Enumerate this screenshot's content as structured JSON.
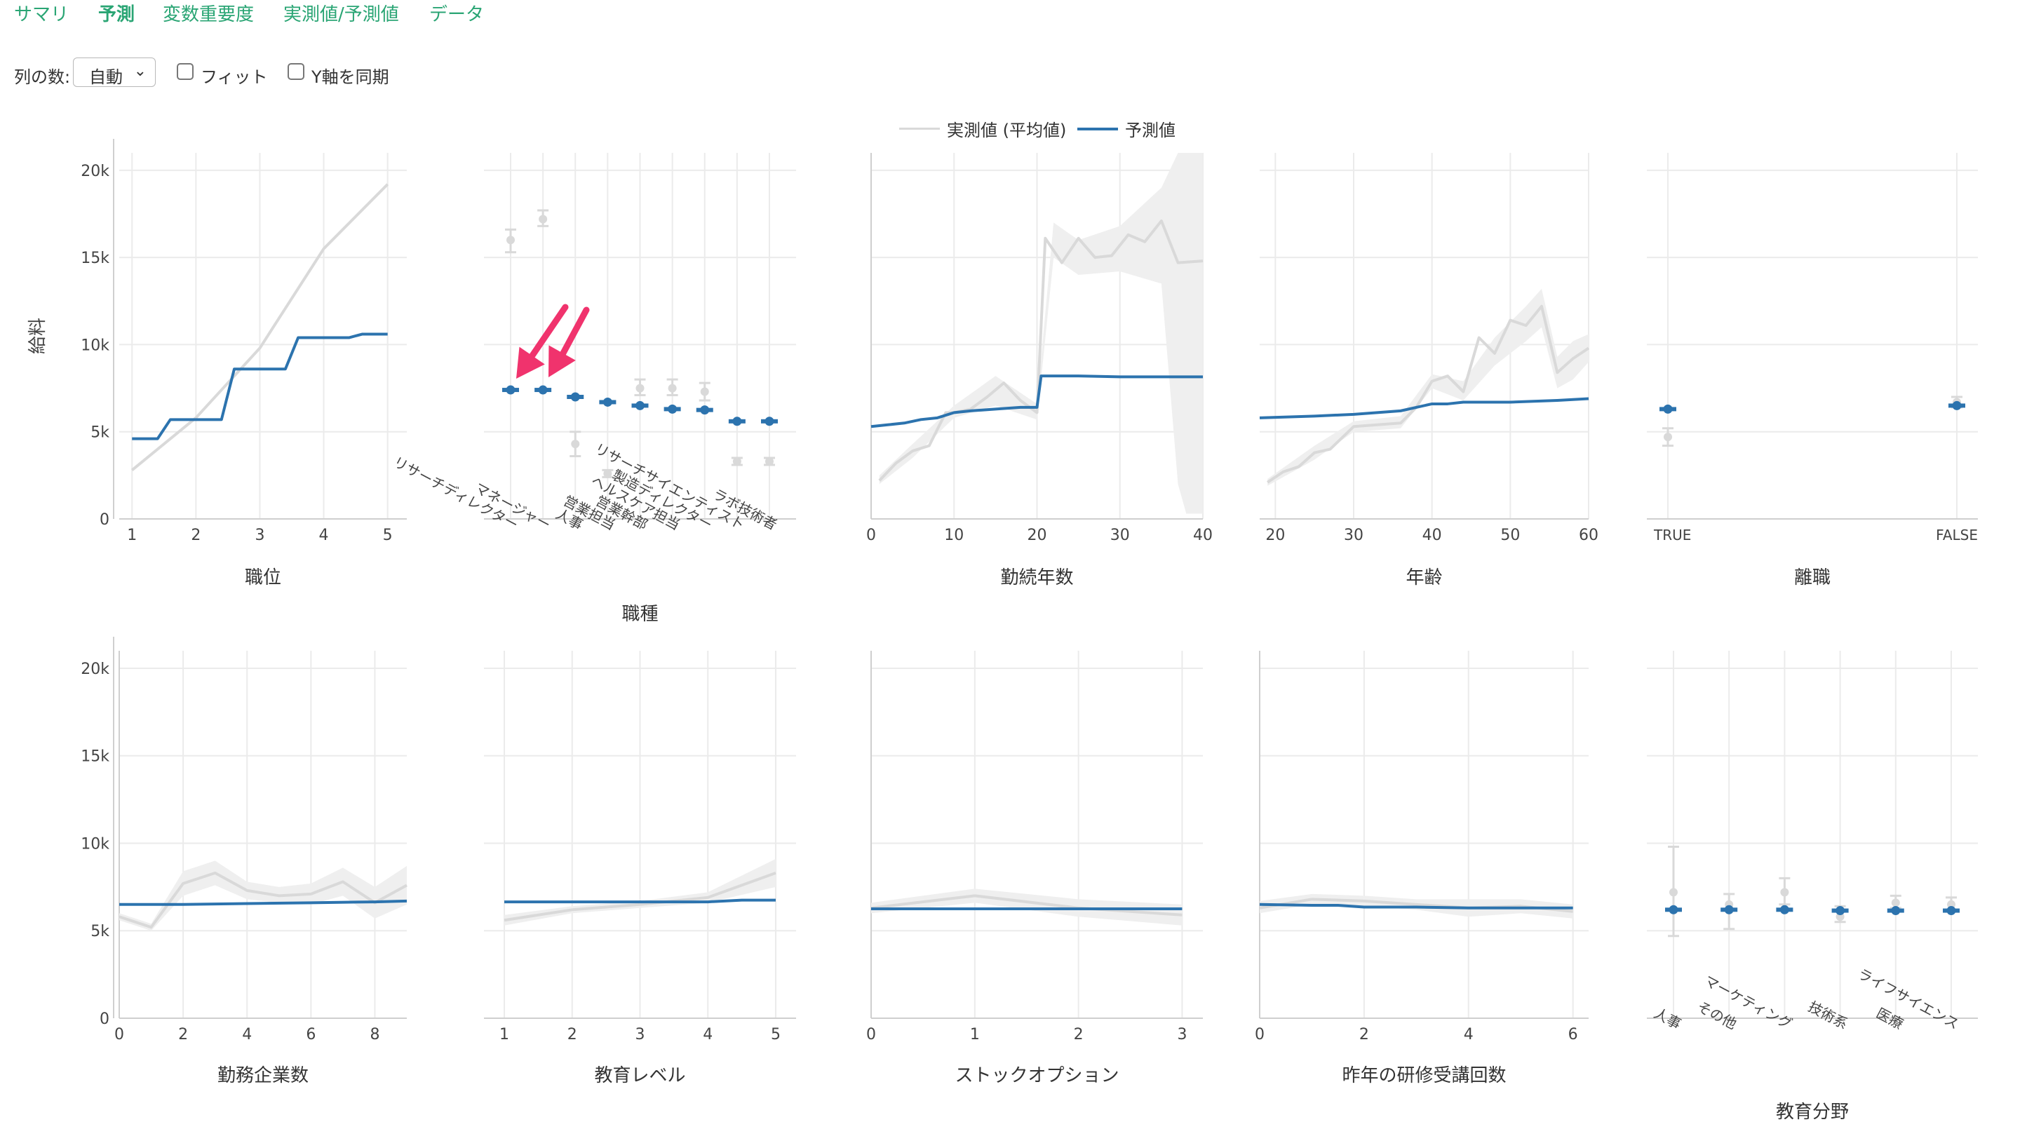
{
  "tabs": [
    {
      "label": "サマリ",
      "active": false
    },
    {
      "label": "予測",
      "active": true
    },
    {
      "label": "変数重要度",
      "active": false
    },
    {
      "label": "実測値/予測値",
      "active": false
    },
    {
      "label": "データ",
      "active": false
    }
  ],
  "controls": {
    "columns_label": "列の数:",
    "columns_value": "自動",
    "fit_label": "フィット",
    "fit_checked": false,
    "sync_y_label": "Y軸を同期",
    "sync_y_checked": true
  },
  "legend": {
    "actual_label": "実測値 (平均値)",
    "predicted_label": "予測値"
  },
  "colors": {
    "actual": "#d9d9d9",
    "band": "#efefef",
    "predicted": "#2c73ae",
    "grid": "#ebebeb",
    "arrow": "#f0336d",
    "tab": "#2aa574"
  },
  "chart_data": [
    {
      "type": "line",
      "xlabel": "職位",
      "ylabel": "給料",
      "ylim": [
        0,
        21000
      ],
      "xlim": [
        0.8,
        5.3
      ],
      "xticks": [
        1,
        2,
        3,
        4,
        5
      ],
      "yticks": [
        0,
        5000,
        10000,
        15000,
        20000
      ],
      "ytick_labels": [
        "0",
        "5k",
        "10k",
        "15k",
        "20k"
      ],
      "actual": {
        "x": [
          1,
          2,
          3,
          4,
          5
        ],
        "y": [
          2800,
          5800,
          9800,
          15500,
          19200
        ]
      },
      "predicted": {
        "x": [
          1,
          1.4,
          1.6,
          2.4,
          2.6,
          3.4,
          3.6,
          4.4,
          4.6,
          5
        ],
        "y": [
          4600,
          4600,
          5700,
          5700,
          8600,
          8600,
          10400,
          10400,
          10600,
          10600
        ]
      }
    },
    {
      "type": "scatter",
      "xlabel": "職種",
      "ylim": [
        0,
        21000
      ],
      "categories": [
        "リサーチディレクター",
        "マネージャー",
        "人事",
        "営業担当",
        "営業幹部",
        "ヘルスケア担当",
        "製造ディレクター",
        "リサーチサイエンティスト",
        "ラボ技術者"
      ],
      "predicted": [
        7400,
        7400,
        7000,
        6700,
        6500,
        6300,
        6250,
        5600,
        5600
      ],
      "actual": [
        16000,
        17200,
        4300,
        2600,
        7500,
        7500,
        7300,
        3300,
        3300
      ],
      "actual_lo": [
        15300,
        16800,
        3600,
        2400,
        7100,
        7100,
        6800,
        3100,
        3100
      ],
      "actual_hi": [
        16600,
        17700,
        5000,
        2800,
        8000,
        8000,
        7800,
        3500,
        3500
      ],
      "annotations": [
        "arrow→リサーチディレクター",
        "arrow→マネージャー"
      ]
    },
    {
      "type": "line",
      "xlabel": "勤続年数",
      "ylim": [
        0,
        21000
      ],
      "xlim": [
        0,
        40
      ],
      "xticks": [
        0,
        10,
        20,
        30,
        40
      ],
      "actual": {
        "x": [
          1,
          3,
          5,
          7,
          9,
          10,
          12,
          14,
          16,
          18,
          20,
          21,
          23,
          25,
          27,
          29,
          31,
          33,
          35,
          37,
          40
        ],
        "y": [
          2200,
          3200,
          3900,
          4200,
          6100,
          6100,
          6300,
          7000,
          7800,
          6800,
          6100,
          16100,
          14700,
          16100,
          15000,
          15100,
          16300,
          15900,
          17100,
          14700,
          14800
        ]
      },
      "band": {
        "x": [
          1,
          5,
          10,
          15,
          20,
          22,
          25,
          30,
          35,
          37,
          38,
          40
        ],
        "lo": [
          2000,
          3500,
          5800,
          6500,
          5700,
          15000,
          14000,
          14200,
          13500,
          2000,
          300,
          300
        ],
        "hi": [
          2500,
          4300,
          6500,
          8200,
          6600,
          17000,
          16000,
          16800,
          19000,
          21000,
          21000,
          21000
        ]
      },
      "predicted": {
        "x": [
          0,
          2,
          4,
          6,
          8,
          10,
          12,
          15,
          18,
          20,
          20.5,
          22,
          25,
          30,
          35,
          40
        ],
        "y": [
          5300,
          5400,
          5500,
          5700,
          5800,
          6100,
          6200,
          6300,
          6400,
          6400,
          8200,
          8200,
          8200,
          8150,
          8150,
          8150
        ]
      }
    },
    {
      "type": "line",
      "xlabel": "年齢",
      "ylim": [
        0,
        21000
      ],
      "xlim": [
        18,
        60
      ],
      "xticks": [
        20,
        30,
        40,
        50,
        60
      ],
      "actual": {
        "x": [
          19,
          21,
          23,
          25,
          27,
          30,
          33,
          36,
          38,
          40,
          42,
          44,
          46,
          48,
          50,
          52,
          54,
          56,
          58,
          60
        ],
        "y": [
          2100,
          2700,
          3000,
          3800,
          4000,
          5300,
          5400,
          5500,
          6400,
          7900,
          8200,
          7300,
          10400,
          9500,
          11400,
          11100,
          12200,
          8400,
          9200,
          9800
        ]
      },
      "band": {
        "x": [
          19,
          25,
          30,
          36,
          40,
          44,
          48,
          52,
          54,
          56,
          58,
          60
        ],
        "lo": [
          1900,
          3400,
          5000,
          5200,
          7500,
          6800,
          8800,
          10200,
          11000,
          7500,
          8000,
          9000
        ],
        "hi": [
          2300,
          4200,
          5600,
          5900,
          8300,
          7900,
          10400,
          12200,
          13200,
          9300,
          10200,
          10600
        ]
      },
      "predicted": {
        "x": [
          18,
          25,
          30,
          36,
          40,
          42,
          44,
          50,
          56,
          60
        ],
        "y": [
          5800,
          5900,
          6000,
          6200,
          6600,
          6600,
          6700,
          6700,
          6800,
          6900
        ]
      }
    },
    {
      "type": "scatter",
      "xlabel": "離職",
      "ylim": [
        0,
        21000
      ],
      "categories": [
        "TRUE",
        "FALSE"
      ],
      "predicted": [
        6300,
        6500
      ],
      "actual": [
        4700,
        6700
      ],
      "actual_lo": [
        4200,
        6400
      ],
      "actual_hi": [
        5200,
        7000
      ]
    },
    {
      "type": "line",
      "xlabel": "勤務企業数",
      "ylim": [
        0,
        21000
      ],
      "xlim": [
        0,
        9
      ],
      "xticks": [
        0,
        2,
        4,
        6,
        8
      ],
      "yticks": [
        0,
        5000,
        10000,
        15000,
        20000
      ],
      "ytick_labels": [
        "0",
        "5k",
        "10k",
        "15k",
        "20k"
      ],
      "actual": {
        "x": [
          0,
          1,
          2,
          3,
          4,
          5,
          6,
          7,
          8,
          9
        ],
        "y": [
          5800,
          5200,
          7700,
          8300,
          7300,
          7000,
          7100,
          7800,
          6600,
          7600
        ]
      },
      "band": {
        "x": [
          0,
          1,
          2,
          3,
          4,
          5,
          6,
          7,
          8,
          9
        ],
        "lo": [
          5600,
          5000,
          7000,
          7600,
          6800,
          6600,
          6500,
          7000,
          5700,
          6500
        ],
        "hi": [
          6000,
          5400,
          8400,
          9000,
          7800,
          7500,
          7700,
          8600,
          7500,
          8700
        ]
      },
      "predicted": {
        "x": [
          0,
          2,
          4,
          6,
          8,
          9
        ],
        "y": [
          6500,
          6500,
          6550,
          6600,
          6650,
          6700
        ]
      }
    },
    {
      "type": "line",
      "xlabel": "教育レベル",
      "ylim": [
        0,
        21000
      ],
      "xlim": [
        0.7,
        5.3
      ],
      "xticks": [
        1,
        2,
        3,
        4,
        5
      ],
      "actual": {
        "x": [
          1,
          2,
          3,
          4,
          5
        ],
        "y": [
          5600,
          6200,
          6500,
          6900,
          8300
        ]
      },
      "band": {
        "x": [
          1,
          2,
          3,
          4,
          5
        ],
        "lo": [
          5300,
          6000,
          6300,
          6600,
          7500
        ],
        "hi": [
          5900,
          6400,
          6700,
          7200,
          9100
        ]
      },
      "predicted": {
        "x": [
          1,
          2,
          3,
          4,
          4.5,
          5
        ],
        "y": [
          6650,
          6650,
          6650,
          6650,
          6750,
          6750
        ]
      }
    },
    {
      "type": "line",
      "xlabel": "ストックオプション",
      "ylim": [
        0,
        21000
      ],
      "xlim": [
        0,
        3.2
      ],
      "xticks": [
        0,
        1,
        2,
        3
      ],
      "actual": {
        "x": [
          0,
          1,
          2,
          3
        ],
        "y": [
          6300,
          7000,
          6300,
          5900
        ]
      },
      "band": {
        "x": [
          0,
          1,
          2,
          3
        ],
        "lo": [
          6000,
          6600,
          5800,
          5300
        ],
        "hi": [
          6600,
          7400,
          6800,
          6500
        ]
      },
      "predicted": {
        "x": [
          0,
          1,
          2,
          3
        ],
        "y": [
          6250,
          6250,
          6250,
          6250
        ]
      }
    },
    {
      "type": "line",
      "xlabel": "昨年の研修受講回数",
      "ylim": [
        0,
        21000
      ],
      "xlim": [
        0,
        6.3
      ],
      "xticks": [
        0,
        2,
        4,
        6
      ],
      "actual": {
        "x": [
          0,
          1,
          2,
          3,
          4,
          5,
          6
        ],
        "y": [
          6300,
          6800,
          6700,
          6500,
          6300,
          6400,
          6100
        ]
      },
      "band": {
        "x": [
          0,
          1,
          2,
          3,
          4,
          5,
          6
        ],
        "lo": [
          6000,
          6500,
          6400,
          6200,
          5800,
          6000,
          5700
        ],
        "hi": [
          6700,
          7100,
          7000,
          6800,
          6800,
          6800,
          6500
        ]
      },
      "predicted": {
        "x": [
          0,
          1,
          1.5,
          2,
          3,
          4,
          5,
          6
        ],
        "y": [
          6500,
          6450,
          6450,
          6350,
          6350,
          6300,
          6300,
          6300
        ]
      }
    },
    {
      "type": "scatter",
      "xlabel": "教育分野",
      "ylim": [
        0,
        21000
      ],
      "categories": [
        "人事",
        "その他",
        "マーケティング",
        "技術系",
        "医療",
        "ライフサイエンス"
      ],
      "predicted": [
        6200,
        6200,
        6200,
        6150,
        6150,
        6150
      ],
      "actual": [
        7200,
        6500,
        7200,
        5800,
        6600,
        6500
      ],
      "actual_lo": [
        4700,
        5100,
        6500,
        5500,
        6300,
        6200
      ],
      "actual_hi": [
        9800,
        7100,
        8000,
        6400,
        7000,
        6900
      ]
    }
  ]
}
